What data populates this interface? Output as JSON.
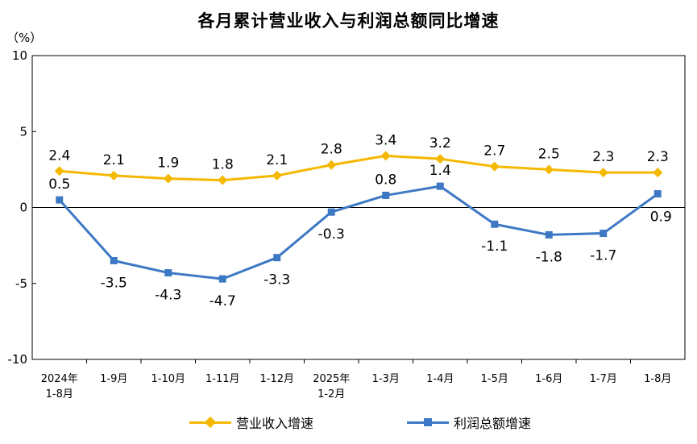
{
  "chart_data": {
    "type": "line",
    "title": "各月累计营业收入与利润总额同比增速",
    "ylabel": "（%）",
    "ylim": [
      -10,
      10
    ],
    "yticks": [
      10,
      5,
      0,
      -5,
      -10
    ],
    "categories": [
      [
        "2024年",
        "1-8月"
      ],
      [
        "1-9月"
      ],
      [
        "1-10月"
      ],
      [
        "1-11月"
      ],
      [
        "1-12月"
      ],
      [
        "2025年",
        "1-2月"
      ],
      [
        "1-3月"
      ],
      [
        "1-4月"
      ],
      [
        "1-5月"
      ],
      [
        "1-6月"
      ],
      [
        "1-7月"
      ],
      [
        "1-8月"
      ]
    ],
    "series": [
      {
        "name": "营业收入增速",
        "color": "#F5B800",
        "marker": "diamond",
        "label_position": "above",
        "values": [
          2.4,
          2.1,
          1.9,
          1.8,
          2.1,
          2.8,
          3.4,
          3.2,
          2.7,
          2.5,
          2.3,
          2.3
        ],
        "labels": [
          "2.4",
          "2.1",
          "1.9",
          "1.8",
          "2.1",
          "2.8",
          "3.4",
          "3.2",
          "2.7",
          "2.5",
          "2.3",
          "2.3"
        ]
      },
      {
        "name": "利润总额增速",
        "color": "#3D78C4",
        "marker": "square",
        "label_position": "mixed",
        "values": [
          0.5,
          -3.5,
          -4.3,
          -4.7,
          -3.3,
          -0.3,
          0.8,
          1.4,
          -1.1,
          -1.8,
          -1.7,
          0.9
        ],
        "labels": [
          "0.5",
          "-3.5",
          "-4.3",
          "-4.7",
          "-3.3",
          "-0.3",
          "0.8",
          "1.4",
          "-1.1",
          "-1.8",
          "-1.7",
          "0.9"
        ]
      }
    ]
  }
}
